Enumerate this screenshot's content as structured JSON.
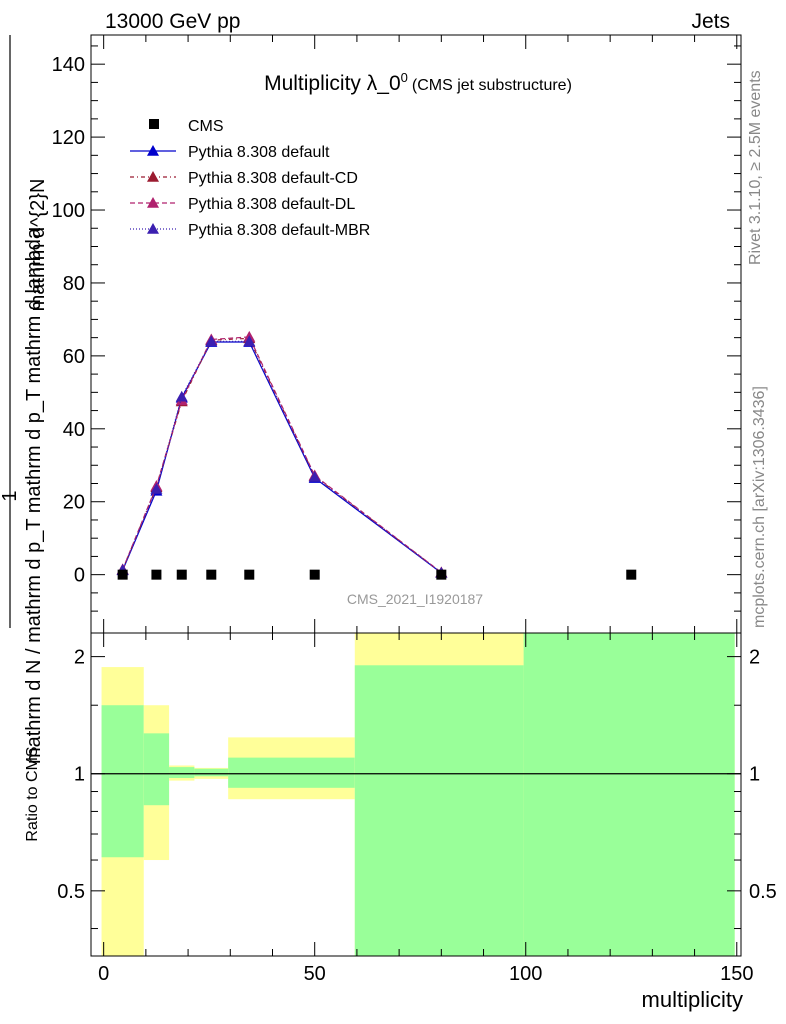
{
  "header": {
    "left": "13000 GeV pp",
    "right": "Jets"
  },
  "side": {
    "rivet": "Rivet 3.1.10, ≥ 2.5M events",
    "mcplots": "mcplots.cern.ch [arXiv:1306.3436]"
  },
  "chart_data": [
    {
      "type": "line",
      "title_main": "Multiplicity λ_0",
      "title_sup": "0",
      "title_sub": "(CMS jet substructure)",
      "watermark": "CMS_2021_I1920187",
      "ylabel_top": "1",
      "ylabel_bottom": "mathrm d N / mathrm d p_{T} mathrm d p_{T} mathrm d lambda",
      "ylabel_num": "mathrm d^{2}N",
      "ylabel_den": "mathrm d N / mathrm d p_T mathrm d p_T mathrm d lambda",
      "xlim": [
        -3,
        151
      ],
      "ylim": [
        -16,
        148
      ],
      "yticks": [
        0,
        20,
        40,
        60,
        80,
        100,
        120,
        140
      ],
      "grid": false,
      "legend_position": "top-left",
      "data": {
        "name": "CMS",
        "x": [
          4.5,
          12.5,
          18.5,
          25.5,
          34.5,
          50,
          80,
          125
        ],
        "y": [
          0,
          0,
          0,
          0,
          0,
          0,
          0,
          0
        ]
      },
      "series": [
        {
          "name": "Pythia 8.308 default",
          "color": "#0000cc",
          "dash": "solid",
          "x": [
            4.5,
            12.5,
            18.5,
            25.5,
            34.5,
            50,
            80
          ],
          "y": [
            1.2,
            23,
            48.5,
            63.8,
            63.8,
            26.5,
            0.5
          ]
        },
        {
          "name": "Pythia 8.308 default-CD",
          "color": "#9b1b30",
          "dash": "4,3,1,3",
          "x": [
            4.5,
            12.5,
            18.5,
            25.5,
            34.5,
            50,
            80
          ],
          "y": [
            1.4,
            24,
            47.5,
            64.3,
            64.8,
            27,
            0.6
          ]
        },
        {
          "name": "Pythia 8.308 default-DL",
          "color": "#b0226e",
          "dash": "5,3",
          "x": [
            4.5,
            12.5,
            18.5,
            25.5,
            34.5,
            50,
            80
          ],
          "y": [
            1.4,
            24.3,
            47.8,
            64.5,
            65.2,
            27.2,
            0.6
          ]
        },
        {
          "name": "Pythia 8.308 default-MBR",
          "color": "#3b1fb0",
          "dash": "1,2",
          "x": [
            4.5,
            12.5,
            18.5,
            25.5,
            34.5,
            50,
            80
          ],
          "y": [
            1.3,
            23.5,
            48.8,
            64,
            64,
            26.8,
            0.5
          ]
        }
      ]
    },
    {
      "type": "area",
      "ylabel": "Ratio to CMS",
      "xlabel": "multiplicity",
      "xlim": [
        -3,
        151
      ],
      "ylim": [
        0.34,
        2.3
      ],
      "xticks": [
        0,
        50,
        100,
        150
      ],
      "yticks": [
        0.5,
        1,
        2
      ],
      "reference": 1,
      "bands": [
        {
          "x0": -0.5,
          "x1": 9.5,
          "green": [
            0.61,
            1.5
          ],
          "yellow": [
            0.34,
            1.88
          ]
        },
        {
          "x0": 9.5,
          "x1": 15.5,
          "green": [
            0.83,
            1.27
          ],
          "yellow": [
            0.6,
            1.5
          ]
        },
        {
          "x0": 15.5,
          "x1": 21.5,
          "green": [
            0.975,
            1.04
          ],
          "yellow": [
            0.96,
            1.05
          ]
        },
        {
          "x0": 21.5,
          "x1": 29.5,
          "green": [
            0.985,
            1.03
          ],
          "yellow": [
            0.97,
            1.035
          ]
        },
        {
          "x0": 29.5,
          "x1": 59.5,
          "green": [
            0.92,
            1.1
          ],
          "yellow": [
            0.86,
            1.24
          ]
        },
        {
          "x0": 59.5,
          "x1": 99.5,
          "green": [
            0.34,
            1.9
          ],
          "yellow": [
            0.34,
            2.3
          ]
        },
        {
          "x0": 99.5,
          "x1": 149.5,
          "green": [
            0.34,
            2.3
          ],
          "yellow": [
            0.34,
            2.3
          ]
        }
      ]
    }
  ]
}
